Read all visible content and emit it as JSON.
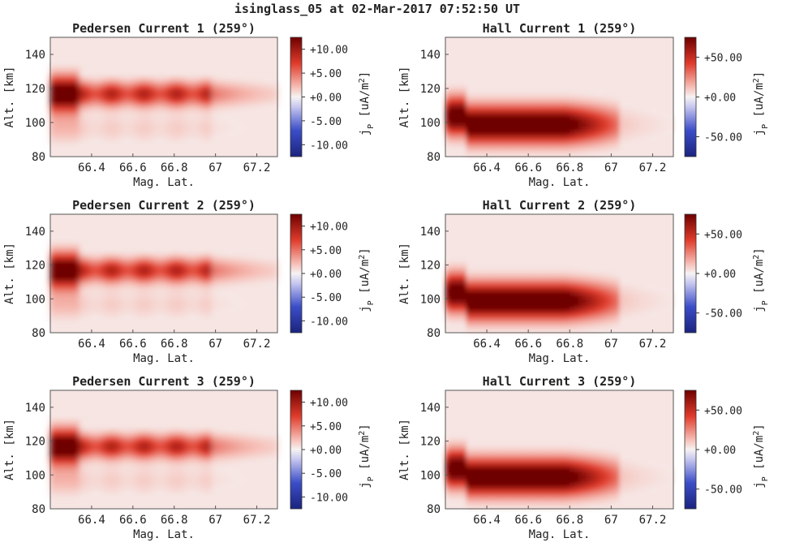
{
  "figure": {
    "title": "isinglass_05 at 02-Mar-2017 07:52:50 UT"
  },
  "chart_data": [
    {
      "type": "heatmap",
      "title": "Pedersen Current 1 (259°)",
      "xlabel": "Mag. Lat.",
      "ylabel": "Alt. [km]",
      "xlim": [
        66.2,
        67.3
      ],
      "ylim": [
        80,
        150
      ],
      "xticks": [
        "66.4",
        "66.6",
        "66.8",
        "67",
        "67.2"
      ],
      "yticks": [
        "80",
        "100",
        "120",
        "140"
      ],
      "colorbar": {
        "label": "jP [uA/m2]",
        "clim": [
          -12.5,
          12.5
        ],
        "ticks": [
          "+10.00",
          "+5.00",
          "+0.00",
          "-5.00",
          "-10.00"
        ],
        "colormap": "seismic"
      },
      "features": {
        "peak_altitude_km": 117,
        "peak_mag_lat": 66.28,
        "peak_value": 12.5,
        "extent_mag_lat": [
          66.2,
          67.3
        ]
      }
    },
    {
      "type": "heatmap",
      "title": "Hall Current 1 (259°)",
      "xlabel": "Mag. Lat.",
      "ylabel": "Alt. [km]",
      "xlim": [
        66.2,
        67.3
      ],
      "ylim": [
        80,
        150
      ],
      "xticks": [
        "66.4",
        "66.6",
        "66.8",
        "67",
        "67.2"
      ],
      "yticks": [
        "80",
        "100",
        "120",
        "140"
      ],
      "colorbar": {
        "label": "jP [uA/m2]",
        "clim": [
          -75,
          75
        ],
        "ticks": [
          "+50.00",
          "+0.00",
          "-50.00"
        ],
        "colormap": "seismic"
      },
      "features": {
        "peak_altitude_km": 100,
        "peak_mag_lat": 66.4,
        "peak_value": 75,
        "extent_mag_lat": [
          66.2,
          67.0
        ]
      }
    },
    {
      "type": "heatmap",
      "title": "Pedersen Current 2 (259°)",
      "xlabel": "Mag. Lat.",
      "ylabel": "Alt. [km]",
      "xlim": [
        66.2,
        67.3
      ],
      "ylim": [
        80,
        150
      ],
      "xticks": [
        "66.4",
        "66.6",
        "66.8",
        "67",
        "67.2"
      ],
      "yticks": [
        "80",
        "100",
        "120",
        "140"
      ],
      "colorbar": {
        "label": "jP [uA/m2]",
        "clim": [
          -12.5,
          12.5
        ],
        "ticks": [
          "+10.00",
          "+5.00",
          "+0.00",
          "-5.00",
          "-10.00"
        ],
        "colormap": "seismic"
      },
      "features": {
        "peak_altitude_km": 117,
        "peak_mag_lat": 66.28,
        "peak_value": 12.5,
        "extent_mag_lat": [
          66.2,
          67.3
        ]
      }
    },
    {
      "type": "heatmap",
      "title": "Hall Current 2 (259°)",
      "xlabel": "Mag. Lat.",
      "ylabel": "Alt. [km]",
      "xlim": [
        66.2,
        67.3
      ],
      "ylim": [
        80,
        150
      ],
      "xticks": [
        "66.4",
        "66.6",
        "66.8",
        "67",
        "67.2"
      ],
      "yticks": [
        "80",
        "100",
        "120",
        "140"
      ],
      "colorbar": {
        "label": "jP [uA/m2]",
        "clim": [
          -75,
          75
        ],
        "ticks": [
          "+50.00",
          "+0.00",
          "-50.00"
        ],
        "colormap": "seismic"
      },
      "features": {
        "peak_altitude_km": 100,
        "peak_mag_lat": 66.4,
        "peak_value": 75,
        "extent_mag_lat": [
          66.2,
          67.0
        ]
      }
    },
    {
      "type": "heatmap",
      "title": "Pedersen Current 3 (259°)",
      "xlabel": "Mag. Lat.",
      "ylabel": "Alt. [km]",
      "xlim": [
        66.2,
        67.3
      ],
      "ylim": [
        80,
        150
      ],
      "xticks": [
        "66.4",
        "66.6",
        "66.8",
        "67",
        "67.2"
      ],
      "yticks": [
        "80",
        "100",
        "120",
        "140"
      ],
      "colorbar": {
        "label": "jP [uA/m2]",
        "clim": [
          -12.5,
          12.5
        ],
        "ticks": [
          "+10.00",
          "+5.00",
          "+0.00",
          "-5.00",
          "-10.00"
        ],
        "colormap": "seismic"
      },
      "features": {
        "peak_altitude_km": 117,
        "peak_mag_lat": 66.28,
        "peak_value": 12.5,
        "extent_mag_lat": [
          66.2,
          67.3
        ]
      }
    },
    {
      "type": "heatmap",
      "title": "Hall Current 3 (259°)",
      "xlabel": "Mag. Lat.",
      "ylabel": "Alt. [km]",
      "xlim": [
        66.2,
        67.3
      ],
      "ylim": [
        80,
        150
      ],
      "xticks": [
        "66.4",
        "66.6",
        "66.8",
        "67",
        "67.2"
      ],
      "yticks": [
        "80",
        "100",
        "120",
        "140"
      ],
      "colorbar": {
        "label": "jP [uA/m2]",
        "clim": [
          -75,
          75
        ],
        "ticks": [
          "+50.00",
          "+0.00",
          "-50.00"
        ],
        "colormap": "seismic"
      },
      "features": {
        "peak_altitude_km": 100,
        "peak_mag_lat": 66.4,
        "peak_value": 75,
        "extent_mag_lat": [
          66.2,
          67.0
        ]
      }
    }
  ]
}
